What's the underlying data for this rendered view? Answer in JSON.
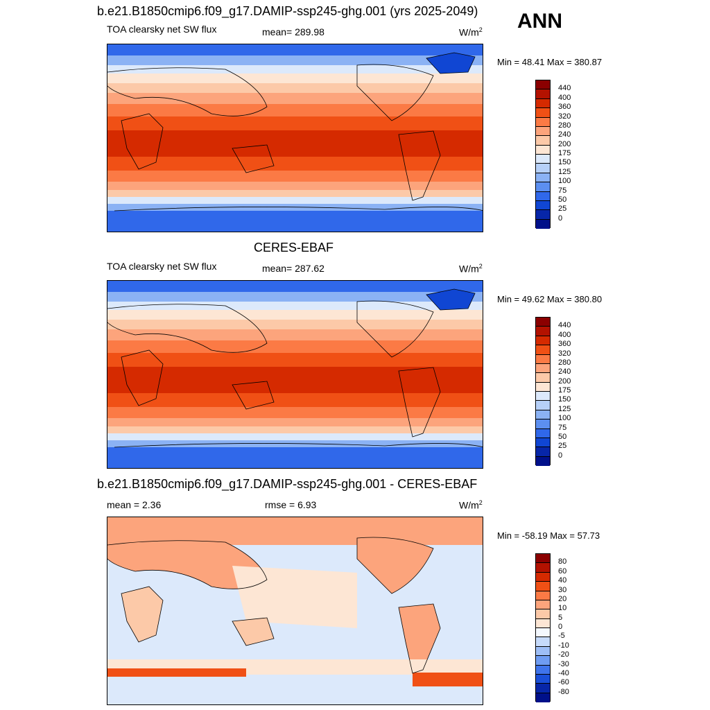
{
  "panel1": {
    "title": "b.e21.B1850cmip6.f09_g17.DAMIP-ssp245-ghg.001 (yrs 2025-2049)",
    "left": "TOA clearsky net SW flux",
    "center": "mean= 289.98",
    "units": "W/m",
    "units_sup": "2",
    "minmax": "Min =  48.41 Max = 380.87"
  },
  "season": "ANN",
  "panel2": {
    "title": "CERES-EBAF",
    "left": "TOA clearsky net SW flux",
    "center": "mean= 287.62",
    "units": "W/m",
    "units_sup": "2",
    "minmax": "Min =  49.62 Max = 380.80"
  },
  "panel3": {
    "title": "b.e21.B1850cmip6.f09_g17.DAMIP-ssp245-ghg.001 - CERES-EBAF",
    "left": "mean =   2.36",
    "center": "rmse =   6.93",
    "units": "W/m",
    "units_sup": "2",
    "minmax": "Min = -58.19 Max =  57.73"
  },
  "colorbar_abs": {
    "labels": [
      "440",
      "400",
      "360",
      "320",
      "280",
      "240",
      "200",
      "175",
      "150",
      "125",
      "100",
      "75",
      "50",
      "25",
      "0"
    ],
    "colors": [
      "#8b0000",
      "#b31200",
      "#d52a00",
      "#f05015",
      "#fb7a45",
      "#fca47c",
      "#fcc9a8",
      "#fde6d4",
      "#dce9fb",
      "#b6d0f8",
      "#8bb2f4",
      "#5c8ff0",
      "#3068ea",
      "#1046d3",
      "#0726a8",
      "#00108a"
    ]
  },
  "colorbar_diff": {
    "labels": [
      "80",
      "60",
      "40",
      "30",
      "20",
      "10",
      "5",
      "0",
      "-5",
      "-10",
      "-20",
      "-30",
      "-40",
      "-60",
      "-80"
    ],
    "colors": [
      "#8b0000",
      "#b31200",
      "#d52a00",
      "#f05015",
      "#fb7a45",
      "#fca47c",
      "#fcc9a8",
      "#fde6d4",
      "#f4f8fe",
      "#c6dafa",
      "#9ebef6",
      "#6f9cf2",
      "#3f74eb",
      "#1a4fd8",
      "#0726a8",
      "#00108a"
    ]
  }
}
